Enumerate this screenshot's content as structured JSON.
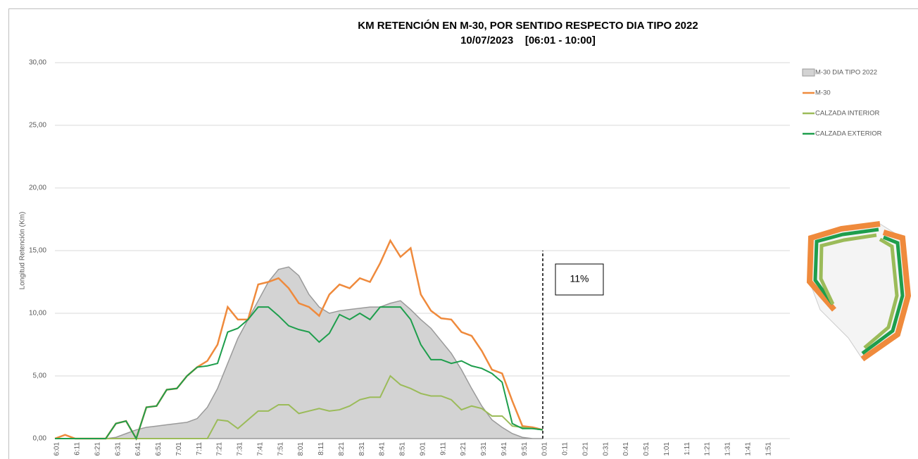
{
  "chart_data": {
    "type": "line",
    "title": "KM RETENCIÓN EN M-30, POR SENTIDO RESPECTO DIA TIPO 2022",
    "subtitle": "10/07/2023    [06:01 - 10:00]",
    "y_label": "Longitud Retención (Km)",
    "annotation": "11%",
    "categories": [
      "6:01",
      null,
      "6:11",
      null,
      "6:21",
      null,
      "6:31",
      null,
      "6:41",
      null,
      "6:51",
      null,
      "7:01",
      null,
      "7:11",
      null,
      "7:21",
      null,
      "7:31",
      null,
      "7:41",
      null,
      "7:51",
      null,
      "8:01",
      null,
      "8:11",
      null,
      "8:21",
      null,
      "8:31",
      null,
      "8:41",
      null,
      "8:51",
      null,
      "9:01",
      null,
      "9:11",
      null,
      "9:21",
      null,
      "9:31",
      null,
      "9:41",
      null,
      "9:51",
      null,
      "0:01",
      null,
      "0:11",
      null,
      "0:21",
      null,
      "0:31",
      null,
      "0:41",
      null,
      "0:51",
      null,
      "1:01",
      null,
      "1:11",
      null,
      "1:21",
      null,
      "1:31",
      null,
      "1:41",
      null,
      "1:51",
      null
    ],
    "series": [
      {
        "name": "M-30 DIA TIPO 2022",
        "color": "#d3d3d3",
        "kind": "area",
        "values": [
          0,
          0,
          0,
          0,
          0,
          0,
          0.1,
          0.4,
          0.7,
          0.9,
          1.0,
          1.1,
          1.2,
          1.3,
          1.6,
          2.5,
          4.0,
          6.0,
          8.0,
          9.5,
          11.0,
          12.5,
          13.5,
          13.7,
          13.0,
          11.5,
          10.5,
          10.0,
          10.2,
          10.3,
          10.4,
          10.5,
          10.5,
          10.8,
          11.0,
          10.3,
          9.5,
          8.8,
          7.8,
          6.8,
          5.5,
          4.0,
          2.6,
          1.5,
          0.9,
          0.4,
          0.1,
          0,
          0,
          null,
          null,
          null,
          null,
          null,
          null,
          null,
          null,
          null,
          null,
          null,
          null,
          null,
          null,
          null,
          null,
          null,
          null,
          null,
          null,
          null,
          null,
          null
        ]
      },
      {
        "name": "M-30",
        "color": "#ef8a3c",
        "values": [
          0,
          0.3,
          0,
          0,
          0,
          0,
          1.2,
          1.4,
          0,
          2.5,
          2.6,
          3.9,
          4.0,
          5.0,
          5.7,
          6.2,
          7.5,
          10.5,
          9.5,
          9.5,
          12.3,
          12.5,
          12.8,
          12.0,
          10.8,
          10.5,
          9.8,
          11.5,
          12.3,
          12.0,
          12.8,
          12.5,
          14.0,
          15.8,
          14.5,
          15.2,
          11.5,
          10.2,
          9.6,
          9.5,
          8.5,
          8.2,
          7.0,
          5.5,
          5.2,
          3.0,
          1.0,
          0.9,
          0.7,
          null,
          null,
          null,
          null,
          null,
          null,
          null,
          null,
          null,
          null,
          null,
          null,
          null,
          null,
          null,
          null,
          null,
          null,
          null,
          null,
          null,
          null,
          null
        ]
      },
      {
        "name": "CALZADA INTERIOR",
        "color": "#9bbb59",
        "values": [
          0,
          0,
          0,
          0,
          0,
          0,
          0,
          0,
          0,
          0,
          0,
          0,
          0,
          0,
          0,
          0,
          1.5,
          1.4,
          0.8,
          1.5,
          2.2,
          2.2,
          2.7,
          2.7,
          2.0,
          2.2,
          2.4,
          2.2,
          2.3,
          2.6,
          3.1,
          3.3,
          3.3,
          5.0,
          4.3,
          4.0,
          3.6,
          3.4,
          3.4,
          3.1,
          2.3,
          2.6,
          2.4,
          1.8,
          1.8,
          1.0,
          0.9,
          0.8,
          0.7,
          null,
          null,
          null,
          null,
          null,
          null,
          null,
          null,
          null,
          null,
          null,
          null,
          null,
          null,
          null,
          null,
          null,
          null,
          null,
          null,
          null,
          null,
          null
        ]
      },
      {
        "name": "CALZADA EXTERIOR",
        "color": "#1e9e4c",
        "values": [
          0,
          0,
          0,
          0,
          0,
          0,
          1.2,
          1.4,
          0,
          2.5,
          2.6,
          3.9,
          4.0,
          5.0,
          5.7,
          5.8,
          6.0,
          8.5,
          8.8,
          9.5,
          10.5,
          10.5,
          9.8,
          9.0,
          8.7,
          8.5,
          7.7,
          8.4,
          9.9,
          9.5,
          10.0,
          9.5,
          10.5,
          10.5,
          10.5,
          9.5,
          7.5,
          6.3,
          6.3,
          6.0,
          6.2,
          5.8,
          5.6,
          5.2,
          4.5,
          1.2,
          0.8,
          0.8,
          0.7,
          null,
          null,
          null,
          null,
          null,
          null,
          null,
          null,
          null,
          null,
          null,
          null,
          null,
          null,
          null,
          null,
          null,
          null,
          null,
          null,
          null,
          null,
          null
        ]
      }
    ],
    "ylim": [
      0,
      30
    ],
    "yticks": [
      {
        "value": 0,
        "label": "0,00"
      },
      {
        "value": 5,
        "label": "5,00"
      },
      {
        "value": 10,
        "label": "10,00"
      },
      {
        "value": 15,
        "label": "15,00"
      },
      {
        "value": 20,
        "label": "20,00"
      },
      {
        "value": 25,
        "label": "25,00"
      },
      {
        "value": 30,
        "label": "30,00"
      }
    ],
    "grid": true,
    "legend": "right"
  }
}
